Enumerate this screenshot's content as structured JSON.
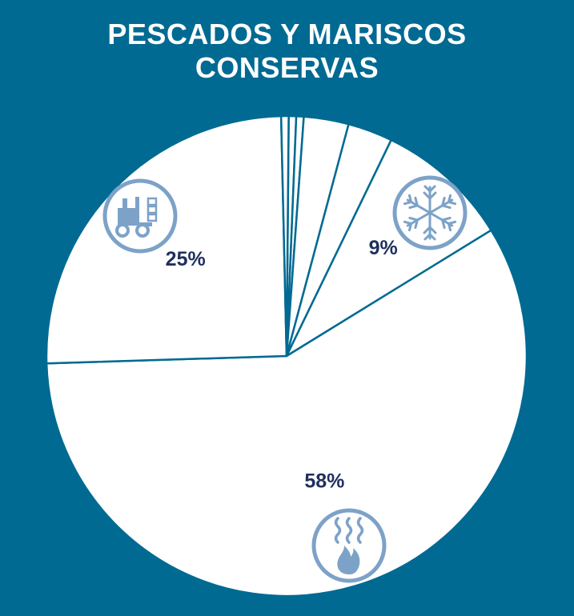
{
  "title_lines": [
    "PESCADOS Y MARISCOS",
    "CONSERVAS"
  ],
  "colors": {
    "background": "#006a92",
    "slice_fill": "#ffffff",
    "separator": "#006a92",
    "label_text": "#1f2f5e",
    "icon": "#7da2c8"
  },
  "chart_data": {
    "type": "pie",
    "title": "PESCADOS Y MARISCOS CONSERVAS",
    "slices": [
      {
        "value": 0.5,
        "label": ""
      },
      {
        "value": 0.5,
        "label": ""
      },
      {
        "value": 3,
        "label": ""
      },
      {
        "value": 3,
        "label": ""
      },
      {
        "value": 9,
        "label": "9%",
        "icon": "snowflake-icon"
      },
      {
        "value": 58,
        "label": "58%",
        "icon": "steam-flame-icon"
      },
      {
        "value": 25,
        "label": "25%",
        "icon": "forklift-icon"
      },
      {
        "value": 0.5,
        "label": ""
      }
    ]
  }
}
